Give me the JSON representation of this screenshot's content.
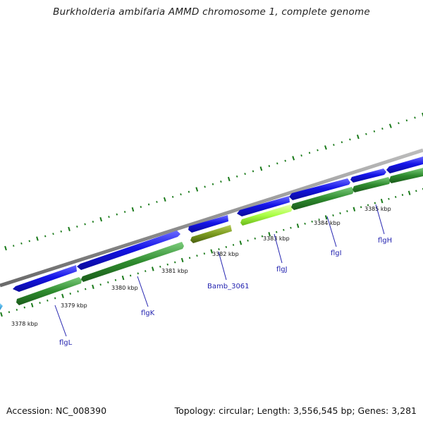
{
  "title": "Burkholderia ambifaria AMMD chromosome 1, complete genome",
  "footer": {
    "accession": "Accession: NC_008390",
    "summary": "Topology: circular; Length: 3,556,545 bp; Genes: 3,281"
  },
  "colors": {
    "backbone": "#8a8a8a",
    "forward_cds": "#1414e8",
    "reverse_cds": "#2e8b2e",
    "highlight_cds": "#aaff44",
    "other_cds": "#7a9a1e",
    "partial_cds": "#1ea0d8",
    "tick": "#1a7a1a",
    "label_line": "#2424b0"
  },
  "position_labels": [
    "3378 kbp",
    "3379 kbp",
    "3380 kbp",
    "3381 kbp",
    "3382 kbp",
    "3383 kbp",
    "3384 kbp",
    "3385 kbp"
  ],
  "gene_labels": [
    "flgL",
    "flgK",
    "Bamb_3061",
    "flgJ",
    "flgI",
    "flgH"
  ]
}
